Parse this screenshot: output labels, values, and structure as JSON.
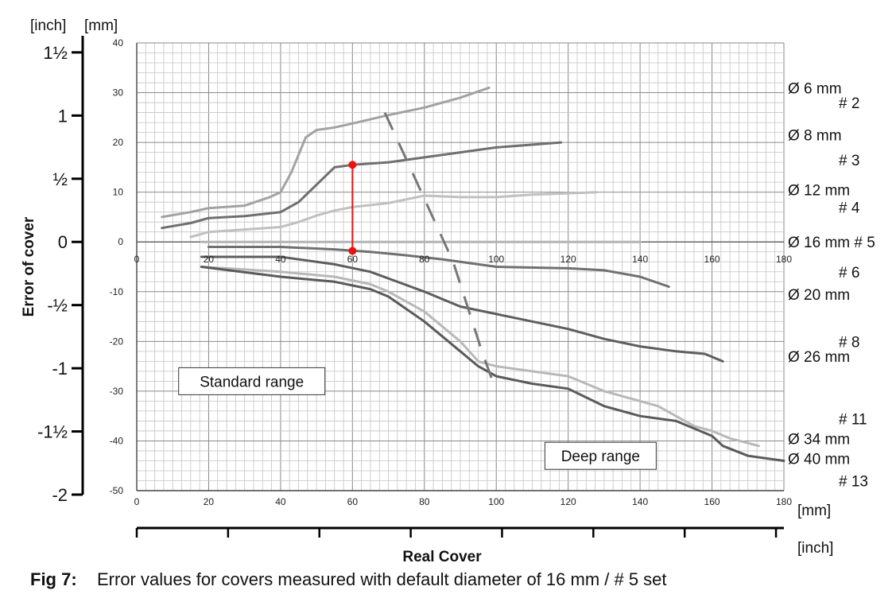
{
  "chart_data": {
    "type": "line",
    "title": "Error values for covers measured with default diameter of 16 mm / # 5 set",
    "xlabel": "Real Cover",
    "ylabel": "Error of cover",
    "x_unit": "[mm]",
    "x_unit_secondary": "[inch]",
    "y_unit_primary": "[mm]",
    "y_unit_secondary": "[inch]",
    "xlim": [
      0,
      180
    ],
    "ylim": [
      -50,
      40
    ],
    "x_ticks": [
      "0",
      "20",
      "40",
      "60",
      "80",
      "100",
      "120",
      "140",
      "160",
      "180"
    ],
    "y_ticks": [
      "40",
      "30",
      "20",
      "10",
      "0",
      "-10",
      "-20",
      "-30",
      "-40",
      "-50"
    ],
    "inch_ticks": [
      "1½",
      "1",
      "½",
      "0",
      "-½",
      "-1",
      "-1½",
      "-2"
    ],
    "grid": true,
    "series": [
      {
        "name": "Ø 6 mm # 2",
        "color": "#a2a2a2",
        "x": [
          7,
          15,
          20,
          30,
          37,
          40,
          43,
          47,
          50,
          55,
          60,
          70,
          80,
          90,
          98
        ],
        "y": [
          5,
          6,
          6.8,
          7.3,
          9,
          10,
          14,
          21,
          22.5,
          23,
          23.8,
          25.5,
          27,
          29,
          31
        ]
      },
      {
        "name": "Ø 8 mm # 3",
        "color": "#6f6f6f",
        "x": [
          7,
          15,
          20,
          30,
          40,
          45,
          50,
          55,
          60,
          70,
          80,
          90,
          100,
          118
        ],
        "y": [
          2.8,
          3.8,
          4.8,
          5.2,
          6,
          8,
          11.5,
          15,
          15.5,
          16,
          17,
          18,
          19,
          20
        ]
      },
      {
        "name": "Ø 12 mm # 4",
        "color": "#c0c0c0",
        "x": [
          15,
          20,
          30,
          40,
          45,
          50,
          55,
          60,
          70,
          80,
          90,
          100,
          110,
          128
        ],
        "y": [
          1,
          2,
          2.5,
          3,
          4,
          5.3,
          6.3,
          7,
          7.8,
          9.3,
          9,
          9,
          9.5,
          10
        ]
      },
      {
        "name": "Ø 16 mm # 5",
        "color": "#b4b4b4",
        "x": [
          18,
          40,
          60,
          80,
          100,
          120,
          140
        ],
        "y": [
          0,
          0,
          0,
          0,
          0,
          0,
          0
        ]
      },
      {
        "name": "# 6 Ø 20 mm",
        "color": "#707070",
        "x": [
          20,
          40,
          55,
          65,
          75,
          85,
          100,
          120,
          130,
          140,
          148
        ],
        "y": [
          -1,
          -1,
          -1.5,
          -2,
          -2.7,
          -3.5,
          -5,
          -5.3,
          -5.7,
          -7,
          -9
        ]
      },
      {
        "name": "# 8 Ø 26 mm",
        "color": "#5e5e5e",
        "x": [
          18,
          40,
          55,
          65,
          80,
          90,
          100,
          110,
          120,
          130,
          140,
          150,
          158,
          163
        ],
        "y": [
          -3,
          -3,
          -4.5,
          -6,
          -10,
          -13,
          -14.5,
          -16,
          -17.5,
          -19.5,
          -21,
          -22,
          -22.5,
          -24
        ]
      },
      {
        "name": "# 11 Ø 34 mm",
        "color": "#b8b8b8",
        "x": [
          18,
          40,
          55,
          65,
          70,
          80,
          90,
          95,
          100,
          110,
          120,
          130,
          145,
          150,
          155,
          160,
          165,
          173
        ],
        "y": [
          -5,
          -6,
          -7,
          -8.5,
          -10,
          -14,
          -20,
          -24,
          -25,
          -26,
          -27,
          -30,
          -33,
          -35,
          -37,
          -38,
          -39.5,
          -41
        ]
      },
      {
        "name": "# 13 Ø 40 mm",
        "color": "#5a5a5a",
        "x": [
          18,
          40,
          55,
          65,
          70,
          80,
          90,
          95,
          100,
          110,
          120,
          130,
          140,
          150,
          155,
          160,
          163,
          170,
          180
        ],
        "y": [
          -5,
          -7,
          -8,
          -9.5,
          -11,
          -16,
          -22,
          -25,
          -27,
          -28.5,
          -29.5,
          -33,
          -35,
          -36,
          -37.5,
          -39,
          -41,
          -43,
          -44
        ]
      }
    ],
    "dashed_boundary": {
      "color": "#777777",
      "x": [
        69,
        76,
        88,
        92,
        96,
        100
      ],
      "y": [
        26,
        15,
        -4,
        -13,
        -22,
        -30
      ]
    },
    "marker_line": {
      "color": "#ee1111",
      "x": 60,
      "y_top": 15.5,
      "y_bottom": -1.8
    },
    "series_labels": [
      {
        "text": "Ø 6 mm",
        "at_y": 31
      },
      {
        "text": "# 2",
        "at_y": 28
      },
      {
        "text": "Ø 8 mm",
        "at_y": 21.5
      },
      {
        "text": "# 3",
        "at_y": 16.5
      },
      {
        "text": "Ø 12 mm",
        "at_y": 10.5
      },
      {
        "text": "# 4",
        "at_y": 7
      },
      {
        "text": "Ø 16 mm # 5",
        "at_y": 0
      },
      {
        "text": "# 6",
        "at_y": -6
      },
      {
        "text": "Ø 20 mm",
        "at_y": -10.5
      },
      {
        "text": "# 8",
        "at_y": -20
      },
      {
        "text": "Ø 26 mm",
        "at_y": -23
      },
      {
        "text": "# 11",
        "at_y": -35.5
      },
      {
        "text": "Ø 34 mm",
        "at_y": -39.5
      },
      {
        "text": "Ø 40 mm",
        "at_y": -43.5
      },
      {
        "text": "# 13",
        "at_y": -48
      }
    ],
    "annotations": [
      {
        "text": "Standard range",
        "at_x": 32,
        "at_y": -28
      },
      {
        "text": "Deep range",
        "at_x": 129,
        "at_y": -43
      }
    ]
  },
  "caption": {
    "label": "Fig 7:",
    "text": "Error values for covers measured with default diameter of 16 mm / # 5 set"
  }
}
